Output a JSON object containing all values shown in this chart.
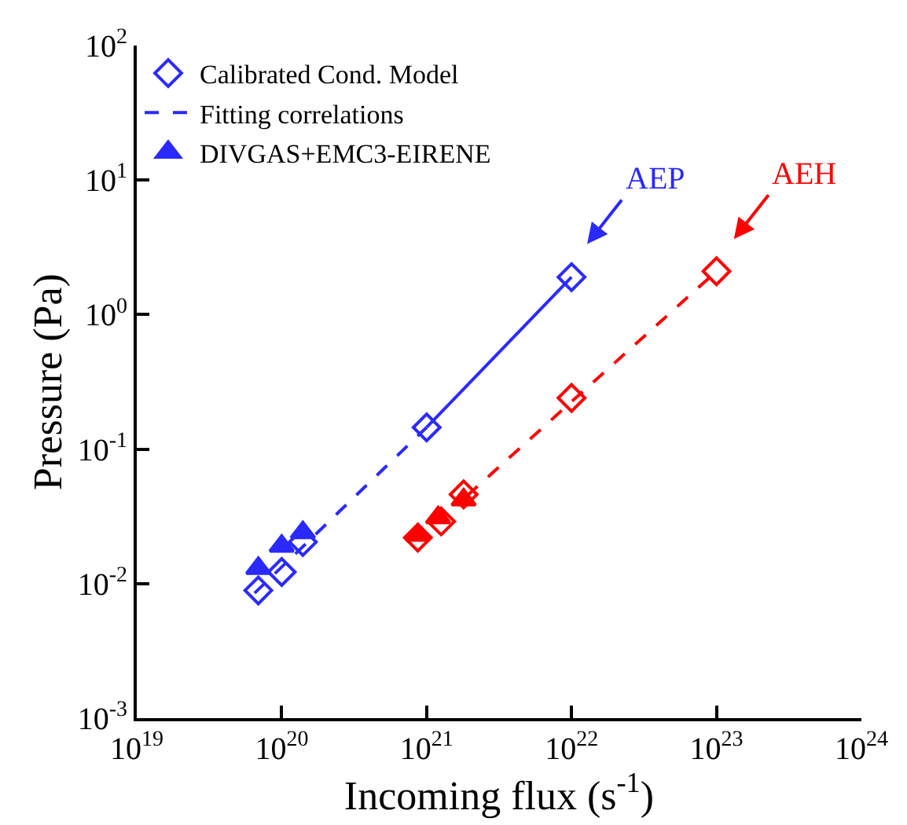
{
  "chart_data": {
    "type": "scatter",
    "xlabel": "Incoming flux (s$^{-1}$)",
    "ylabel": "Pressure (Pa)",
    "log": "xy",
    "legend": "top left",
    "xlim": [
      1e+19,
      1e+24
    ],
    "ylim": [
      0.001,
      100
    ],
    "xticks": [
      {
        "value": 1e+19,
        "label": "10$^{19}$"
      },
      {
        "value": 1e+20,
        "label": "10$^{20}$"
      },
      {
        "value": 1e+21,
        "label": "10$^{21}$"
      },
      {
        "value": 1e+22,
        "label": "10$^{22}$"
      },
      {
        "value": 1e+23,
        "label": "10$^{23}$"
      },
      {
        "value": 1e+24,
        "label": "10$^{24}$"
      }
    ],
    "yticks": [
      {
        "value": 0.001,
        "label": "10$^{-3}$"
      },
      {
        "value": 0.01,
        "label": "10$^{-2}$"
      },
      {
        "value": 0.1,
        "label": "10$^{-1}$"
      },
      {
        "value": 1,
        "label": "10$^{0}$"
      },
      {
        "value": 10,
        "label": "10$^{1}$"
      },
      {
        "value": 100,
        "label": "10$^{2}$"
      }
    ],
    "annotations": [
      "AEP",
      "AEH"
    ],
    "series": [
      {
        "name": "Calibrated Cond. Model",
        "color": "#2a2aff",
        "marker": "diamond",
        "x": [
          6.9e+19,
          1e+20,
          1.4e+20,
          1e+21,
          1e+22
        ],
        "values": [
          0.0089,
          0.0122,
          0.0204,
          0.145,
          1.9
        ]
      },
      {
        "color": "#ff0000",
        "marker": "diamond",
        "x": [
          8.7e+20,
          1.26e+21,
          1.8e+21,
          1e+22,
          1e+23
        ],
        "values": [
          0.022,
          0.029,
          0.046,
          0.24,
          2.1
        ]
      },
      {
        "name": "Fitting correlations",
        "type": "line",
        "line_style": "dashed",
        "color": "#2a2aff",
        "x": [
          6.5e+19,
          1e+21
        ],
        "values": [
          0.0085,
          0.145
        ]
      },
      {
        "type": "line",
        "line_style": "solid",
        "color": "#2a2aff",
        "x": [
          1e+21,
          1e+22
        ],
        "values": [
          0.145,
          1.9
        ]
      },
      {
        "type": "line",
        "line_style": "dashed",
        "color": "#ff0000",
        "x": [
          1.9e+21,
          1e+23
        ],
        "values": [
          0.045,
          2.1
        ]
      },
      {
        "name": "DIVGAS+EMC3-EIRENE",
        "color": "#2a2aff",
        "marker": "triangle",
        "x": [
          6.9e+19,
          1e+20,
          1.4e+20
        ],
        "values": [
          0.013,
          0.019,
          0.024
        ]
      },
      {
        "color": "#ff0000",
        "marker": "triangle",
        "x": [
          8.7e+20,
          1.2e+21,
          1.8e+21
        ],
        "values": [
          0.023,
          0.031,
          0.042
        ]
      }
    ]
  }
}
